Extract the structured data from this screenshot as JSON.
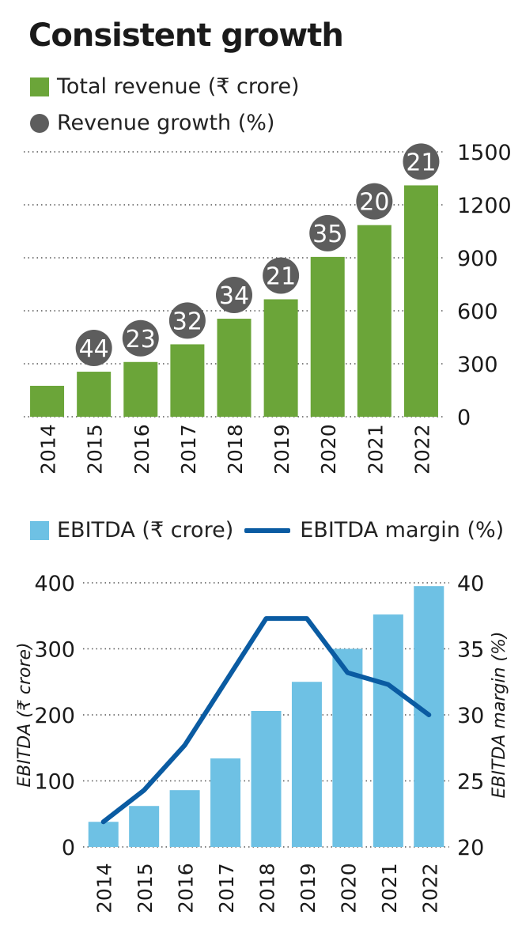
{
  "title": "Consistent growth",
  "colors": {
    "revenue": "#6ba539",
    "growth_bubble": "#5d5d5d",
    "ebitda": "#6ec1e4",
    "margin": "#0a5ba2",
    "grid": "#555555",
    "text": "#1a1a1a"
  },
  "legend1": {
    "revenue": "Total revenue (₹ crore)",
    "growth": "Revenue growth (%)"
  },
  "legend2": {
    "ebitda": "EBITDA (₹ crore)",
    "margin": "EBITDA margin (%)"
  },
  "chart_data": [
    {
      "type": "bar",
      "categories": [
        "2014",
        "2015",
        "2016",
        "2017",
        "2018",
        "2019",
        "2020",
        "2021",
        "2022"
      ],
      "series": [
        {
          "name": "Total revenue (₹ crore)",
          "values": [
            175,
            255,
            310,
            410,
            555,
            665,
            905,
            1085,
            1310
          ]
        },
        {
          "name": "Revenue growth (%)",
          "values": [
            null,
            44,
            23,
            32,
            34,
            21,
            35,
            20,
            21
          ]
        }
      ],
      "y_ticks": [
        0,
        300,
        600,
        900,
        1200,
        1500
      ],
      "ylim": [
        0,
        1500
      ],
      "y_axis_side": "right",
      "grid": true
    },
    {
      "type": "bar",
      "categories": [
        "2014",
        "2015",
        "2016",
        "2017",
        "2018",
        "2019",
        "2020",
        "2021",
        "2022"
      ],
      "series": [
        {
          "name": "EBITDA (₹ crore)",
          "type": "bar",
          "axis": "left",
          "values": [
            38,
            62,
            86,
            134,
            206,
            250,
            300,
            352,
            395
          ]
        },
        {
          "name": "EBITDA margin (%)",
          "type": "line",
          "axis": "right",
          "values": [
            21.9,
            24.3,
            27.7,
            32.5,
            37.3,
            37.3,
            33.2,
            32.3,
            30.0
          ]
        }
      ],
      "ylabel": "EBITDA (₹ crore)",
      "y2label": "EBITDA margin (%)",
      "y_ticks": [
        0,
        100,
        200,
        300,
        400
      ],
      "ylim": [
        0,
        400
      ],
      "y2_ticks": [
        20,
        25,
        30,
        35,
        40
      ],
      "y2lim": [
        20,
        40
      ],
      "grid": true
    }
  ]
}
